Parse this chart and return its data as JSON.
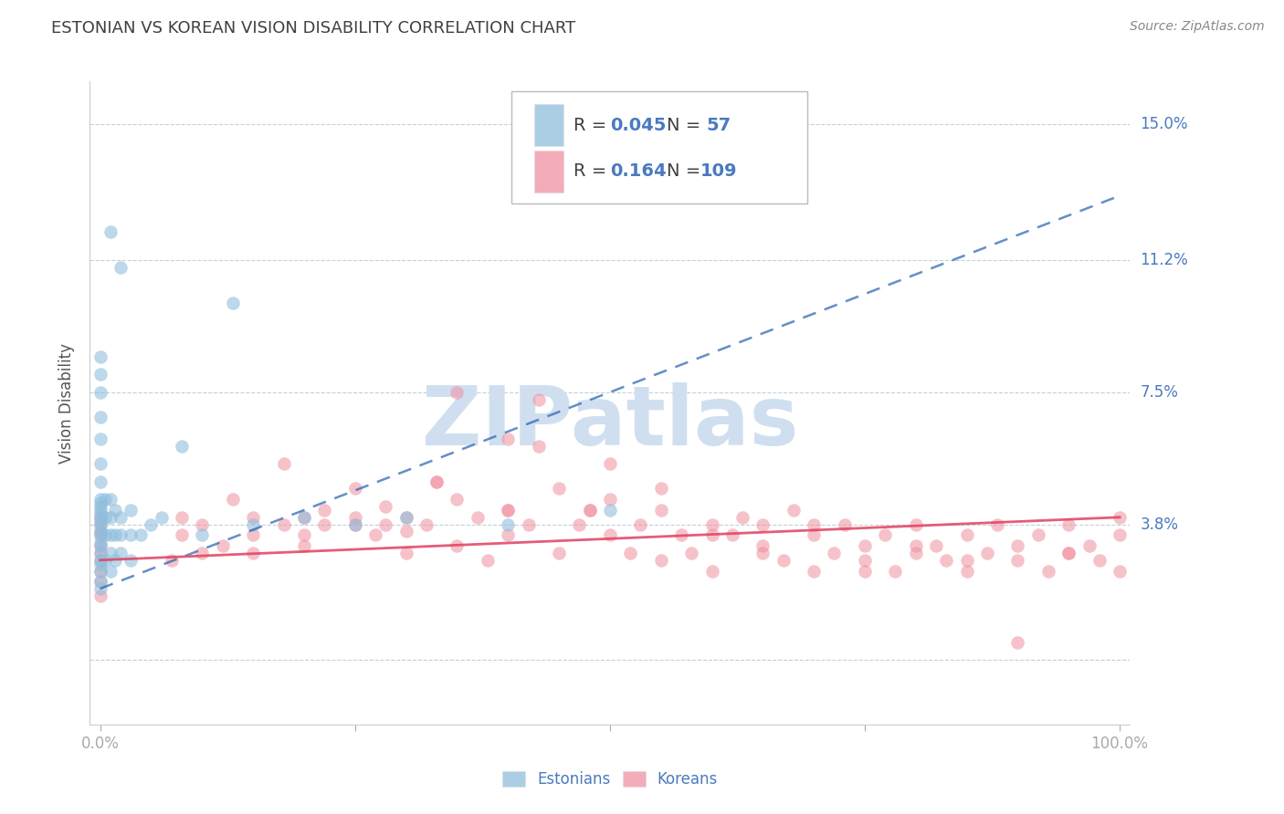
{
  "title": "ESTONIAN VS KOREAN VISION DISABILITY CORRELATION CHART",
  "source_text": "Source: ZipAtlas.com",
  "ylabel": "Vision Disability",
  "ytick_vals": [
    0.0,
    0.038,
    0.075,
    0.112,
    0.15
  ],
  "ytick_labels": [
    "",
    "3.8%",
    "7.5%",
    "11.2%",
    "15.0%"
  ],
  "xlim": [
    -0.01,
    1.01
  ],
  "ylim": [
    -0.018,
    0.162
  ],
  "estonian_color": "#90bedd",
  "korean_color": "#f090a0",
  "estonian_trend_color": "#2060b0",
  "korean_trend_color": "#e04060",
  "estonian_trend_dashed": true,
  "korean_trend_dashed": false,
  "watermark": "ZIPatlas",
  "watermark_color": "#d0dff0",
  "background_color": "#ffffff",
  "title_color": "#404040",
  "blue_text_color": "#4a7abf",
  "dark_text_color": "#404040",
  "grid_color": "#c8cfd8",
  "title_fontsize": 13,
  "source_fontsize": 10,
  "legend_fontsize": 14,
  "axis_fontsize": 12,
  "watermark_fontsize": 65,
  "legend_r_color": "#4a7abf",
  "legend_n_color": "#303030",
  "est_trend_x0": 0.0,
  "est_trend_y0": 0.02,
  "est_trend_x1": 1.0,
  "est_trend_y1": 0.13,
  "kor_trend_x0": 0.0,
  "kor_trend_y0": 0.028,
  "kor_trend_x1": 1.0,
  "kor_trend_y1": 0.04,
  "estonian_x": [
    0.0,
    0.0,
    0.0,
    0.0,
    0.0,
    0.0,
    0.0,
    0.0,
    0.0,
    0.0,
    0.0,
    0.0,
    0.0,
    0.0,
    0.0,
    0.0,
    0.0,
    0.0,
    0.0,
    0.0,
    0.0,
    0.0,
    0.0,
    0.0,
    0.0,
    0.005,
    0.005,
    0.005,
    0.005,
    0.01,
    0.01,
    0.01,
    0.01,
    0.01,
    0.015,
    0.015,
    0.015,
    0.02,
    0.02,
    0.02,
    0.03,
    0.03,
    0.03,
    0.04,
    0.05,
    0.06,
    0.08,
    0.1,
    0.13,
    0.15,
    0.2,
    0.25,
    0.3,
    0.4,
    0.5,
    0.02,
    0.01
  ],
  "estonian_y": [
    0.02,
    0.022,
    0.025,
    0.027,
    0.028,
    0.03,
    0.032,
    0.033,
    0.035,
    0.036,
    0.038,
    0.039,
    0.04,
    0.041,
    0.042,
    0.043,
    0.044,
    0.045,
    0.05,
    0.055,
    0.062,
    0.068,
    0.075,
    0.08,
    0.085,
    0.028,
    0.035,
    0.04,
    0.045,
    0.025,
    0.03,
    0.035,
    0.04,
    0.045,
    0.028,
    0.035,
    0.042,
    0.03,
    0.035,
    0.04,
    0.028,
    0.035,
    0.042,
    0.035,
    0.038,
    0.04,
    0.06,
    0.035,
    0.1,
    0.038,
    0.04,
    0.038,
    0.04,
    0.038,
    0.042,
    0.11,
    0.12
  ],
  "korean_x": [
    0.0,
    0.0,
    0.0,
    0.0,
    0.0,
    0.0,
    0.0,
    0.0,
    0.0,
    0.0,
    0.1,
    0.12,
    0.15,
    0.15,
    0.15,
    0.18,
    0.18,
    0.2,
    0.2,
    0.22,
    0.22,
    0.25,
    0.25,
    0.27,
    0.28,
    0.3,
    0.3,
    0.32,
    0.33,
    0.35,
    0.35,
    0.37,
    0.38,
    0.4,
    0.4,
    0.42,
    0.43,
    0.45,
    0.45,
    0.47,
    0.48,
    0.5,
    0.5,
    0.52,
    0.53,
    0.55,
    0.55,
    0.57,
    0.58,
    0.6,
    0.6,
    0.62,
    0.63,
    0.65,
    0.65,
    0.67,
    0.68,
    0.7,
    0.7,
    0.72,
    0.73,
    0.75,
    0.75,
    0.77,
    0.78,
    0.8,
    0.8,
    0.82,
    0.83,
    0.85,
    0.85,
    0.87,
    0.88,
    0.9,
    0.9,
    0.92,
    0.93,
    0.95,
    0.95,
    0.97,
    0.98,
    1.0,
    1.0,
    0.35,
    0.4,
    0.43,
    0.5,
    0.55,
    0.6,
    0.65,
    0.7,
    0.75,
    0.8,
    0.85,
    0.9,
    0.95,
    1.0,
    0.25,
    0.3,
    0.07,
    0.08,
    0.08,
    0.1,
    0.13,
    0.2,
    0.28,
    0.33,
    0.4,
    0.48
  ],
  "korean_y": [
    0.018,
    0.022,
    0.025,
    0.028,
    0.03,
    0.032,
    0.035,
    0.036,
    0.038,
    0.04,
    0.03,
    0.032,
    0.03,
    0.035,
    0.04,
    0.055,
    0.038,
    0.035,
    0.04,
    0.038,
    0.042,
    0.04,
    0.048,
    0.035,
    0.043,
    0.03,
    0.036,
    0.038,
    0.05,
    0.032,
    0.045,
    0.04,
    0.028,
    0.035,
    0.042,
    0.038,
    0.073,
    0.03,
    0.048,
    0.038,
    0.042,
    0.035,
    0.045,
    0.03,
    0.038,
    0.042,
    0.028,
    0.035,
    0.03,
    0.038,
    0.025,
    0.035,
    0.04,
    0.032,
    0.038,
    0.028,
    0.042,
    0.035,
    0.025,
    0.03,
    0.038,
    0.032,
    0.028,
    0.035,
    0.025,
    0.03,
    0.038,
    0.032,
    0.028,
    0.035,
    0.025,
    0.03,
    0.038,
    0.032,
    0.028,
    0.035,
    0.025,
    0.03,
    0.038,
    0.032,
    0.028,
    0.035,
    0.025,
    0.075,
    0.062,
    0.06,
    0.055,
    0.048,
    0.035,
    0.03,
    0.038,
    0.025,
    0.032,
    0.028,
    0.005,
    0.03,
    0.04,
    0.038,
    0.04,
    0.028,
    0.035,
    0.04,
    0.038,
    0.045,
    0.032,
    0.038,
    0.05,
    0.042,
    0.042
  ]
}
